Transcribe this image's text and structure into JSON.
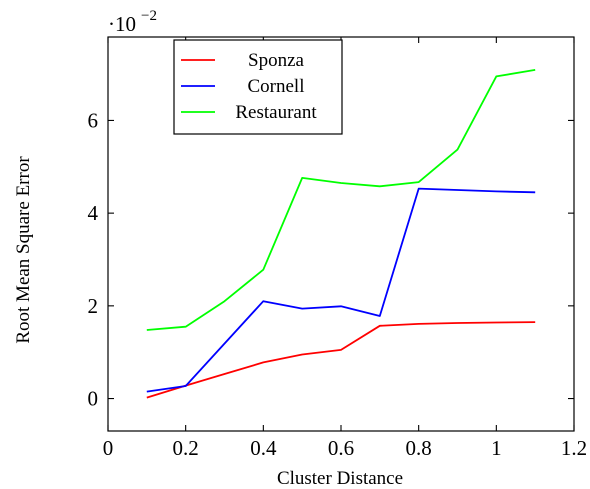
{
  "chart_data": {
    "type": "line",
    "xlabel": "Cluster Distance",
    "ylabel": "Root Mean Square Error",
    "y_scale_label": {
      "base": "·10",
      "exponent": "−2"
    },
    "xlim": [
      0,
      1.2
    ],
    "ylim": [
      -0.7,
      7.8
    ],
    "x_ticks": [
      0,
      0.2,
      0.4,
      0.6,
      0.8,
      1,
      1.2
    ],
    "x_tick_labels": [
      "0",
      "0.2",
      "0.4",
      "0.6",
      "0.8",
      "1",
      "1.2"
    ],
    "y_ticks": [
      0,
      2,
      4,
      6
    ],
    "y_tick_labels": [
      "0",
      "2",
      "4",
      "6"
    ],
    "grid": false,
    "legend_position": "top-left",
    "series": [
      {
        "name": "Sponza",
        "color": "#ff0000",
        "x": [
          0.1,
          0.2,
          0.3,
          0.4,
          0.5,
          0.6,
          0.7,
          0.8,
          0.9,
          1.0,
          1.1
        ],
        "y": [
          0.02,
          0.28,
          0.53,
          0.78,
          0.95,
          1.05,
          1.57,
          1.61,
          1.63,
          1.64,
          1.65
        ]
      },
      {
        "name": "Cornell",
        "color": "#0000ff",
        "x": [
          0.1,
          0.2,
          0.4,
          0.5,
          0.6,
          0.7,
          0.8,
          1.0,
          1.1
        ],
        "y": [
          0.15,
          0.27,
          2.1,
          1.94,
          1.99,
          1.78,
          4.53,
          4.47,
          4.45
        ]
      },
      {
        "name": "Restaurant",
        "color": "#00ff00",
        "x": [
          0.1,
          0.2,
          0.3,
          0.4,
          0.5,
          0.6,
          0.7,
          0.8,
          0.9,
          1.0,
          1.1
        ],
        "y": [
          1.48,
          1.55,
          2.1,
          2.78,
          4.76,
          4.65,
          4.58,
          4.67,
          5.37,
          6.95,
          7.09
        ]
      }
    ]
  }
}
